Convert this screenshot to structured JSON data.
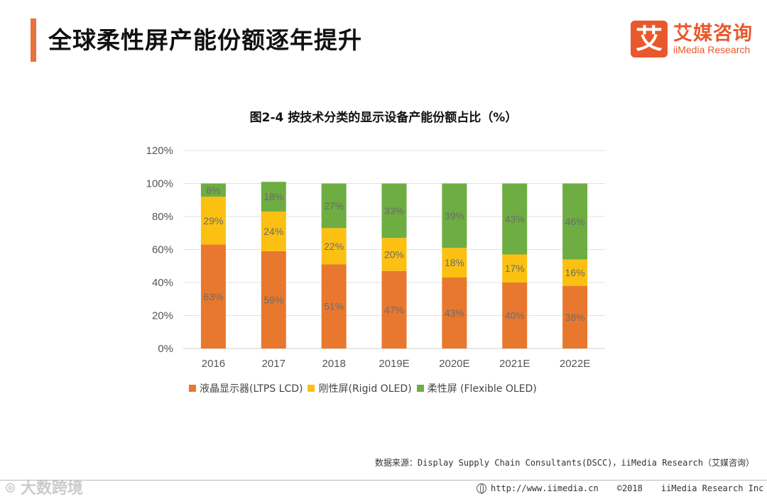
{
  "header": {
    "title": "全球柔性屏产能份额逐年提升",
    "brand_cn": "艾媒咨询",
    "brand_en": "iiMedia Research",
    "brand_mark": "艾",
    "accent_color": "#e8713c"
  },
  "chart_data": {
    "type": "bar",
    "stacked": true,
    "title": "图2-4 按技术分类的显示设备产能份额占比（%）",
    "categories": [
      "2016",
      "2017",
      "2018",
      "2019E",
      "2020E",
      "2021E",
      "2022E"
    ],
    "series": [
      {
        "name": "液晶显示器(LTPS LCD)",
        "color": "#e8782e",
        "values": [
          63,
          59,
          51,
          47,
          43,
          40,
          38
        ],
        "labels": [
          "63%",
          "59%",
          "51%",
          "47%",
          "43%",
          "40%",
          "38%"
        ]
      },
      {
        "name": "刚性屏(Rigid OLED)",
        "color": "#fbc012",
        "values": [
          29,
          24,
          22,
          20,
          18,
          17,
          16
        ],
        "labels": [
          "29%",
          "24%",
          "22%",
          "20%",
          "18%",
          "17%",
          "16%"
        ]
      },
      {
        "name": "柔性屏 (Flexible OLED)",
        "color": "#6ead42",
        "values": [
          8,
          18,
          27,
          33,
          39,
          43,
          46
        ],
        "labels": [
          "8%",
          "18%",
          "27%",
          "33%",
          "39%",
          "43%",
          "46%"
        ]
      }
    ],
    "yticks": [
      "0%",
      "20%",
      "40%",
      "60%",
      "80%",
      "100%",
      "120%"
    ],
    "ytick_values": [
      0,
      20,
      40,
      60,
      80,
      100,
      120
    ],
    "ylim": [
      0,
      120
    ],
    "grid": true,
    "legend_position": "bottom"
  },
  "footer": {
    "source": "数据来源：Display Supply Chain Consultants(DSCC)，iiMedia Research（艾媒咨询）",
    "url": "http://www.iimedia.cn",
    "copyright": "©2018",
    "company": "iiMedia Research Inc",
    "watermark": "⌾ 大数跨境"
  }
}
